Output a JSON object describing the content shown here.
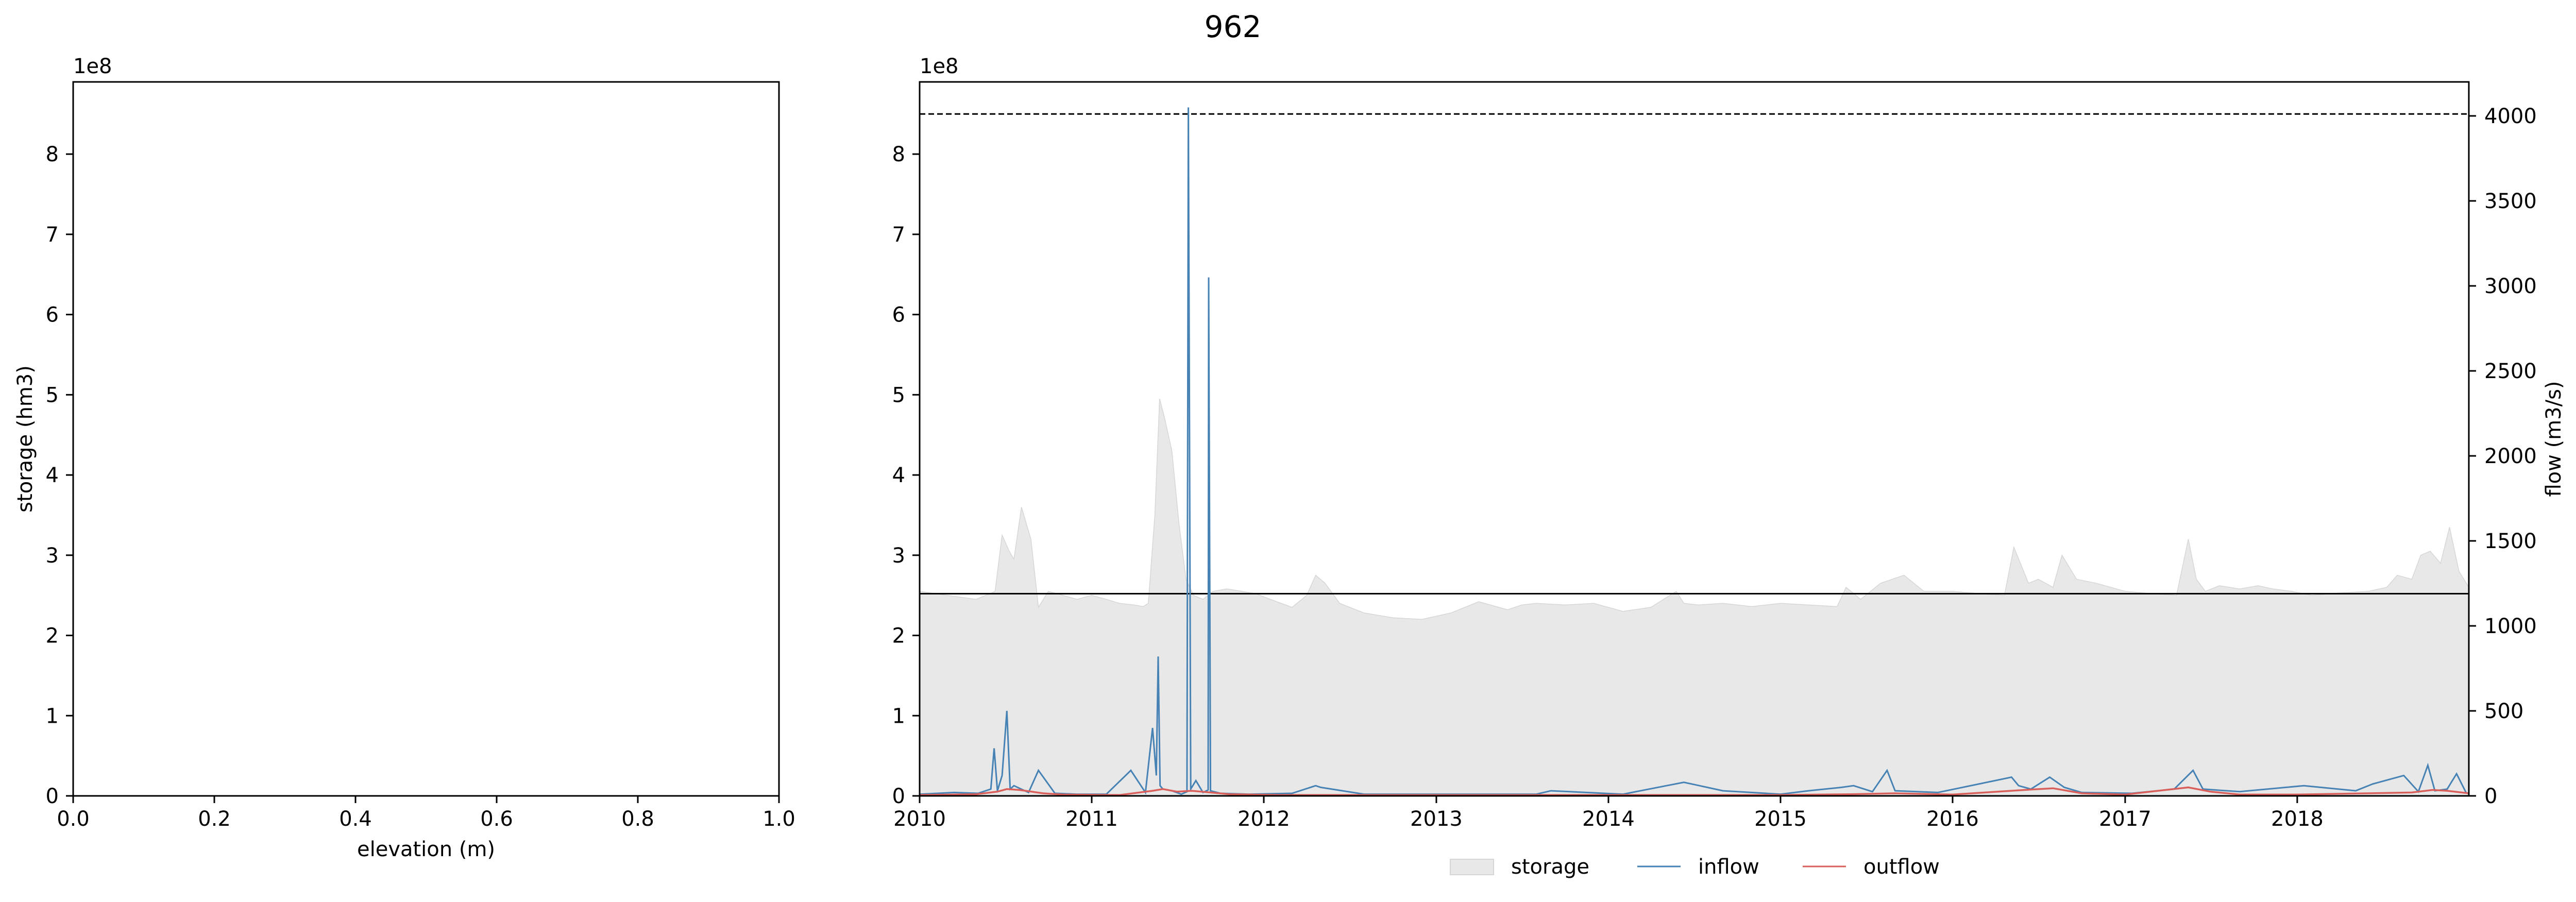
{
  "figure": {
    "title": "962",
    "legend": {
      "placement": "bottom-center",
      "entries": [
        {
          "label": "storage",
          "color": "#e8e8e8",
          "kind": "patch"
        },
        {
          "label": "inflow",
          "color": "#4682b4",
          "kind": "line"
        },
        {
          "label": "outflow",
          "color": "#d9605a",
          "kind": "line"
        }
      ]
    }
  },
  "chart_data": [
    {
      "type": "line",
      "xlabel": "elevation (m)",
      "ylabel": "storage (hm3)",
      "xlim": [
        0.0,
        1.0
      ],
      "ylim": [
        0,
        890000000
      ],
      "y_offset_label": "1e8",
      "xticks": [
        0.0,
        0.2,
        0.4,
        0.6,
        0.8,
        1.0
      ],
      "xtick_labels": [
        "0.0",
        "0.2",
        "0.4",
        "0.6",
        "0.8",
        "1.0"
      ],
      "yticks": [
        0,
        100000000,
        200000000,
        300000000,
        400000000,
        500000000,
        600000000,
        700000000,
        800000000
      ],
      "ytick_labels": [
        "0",
        "1",
        "2",
        "3",
        "4",
        "5",
        "6",
        "7",
        "8"
      ],
      "grid": false,
      "series": []
    },
    {
      "type": "area",
      "xlim": [
        "2010-01-01",
        "2018-12-31"
      ],
      "ylim": [
        0,
        890000000
      ],
      "y_offset_label": "1e8",
      "yticks": [
        0,
        100000000,
        200000000,
        300000000,
        400000000,
        500000000,
        600000000,
        700000000,
        800000000
      ],
      "ytick_labels": [
        "0",
        "1",
        "2",
        "3",
        "4",
        "5",
        "6",
        "7",
        "8"
      ],
      "xticks": [
        "2010-01-01",
        "2011-01-01",
        "2012-01-01",
        "2013-01-01",
        "2014-01-01",
        "2015-01-01",
        "2016-01-01",
        "2017-01-01",
        "2018-01-01"
      ],
      "xtick_labels": [
        "2010",
        "2011",
        "2012",
        "2013",
        "2014",
        "2015",
        "2016",
        "2017",
        "2018"
      ],
      "y2label": "flow (m3/s)",
      "y2lim": [
        0,
        4200
      ],
      "y2ticks": [
        0,
        500,
        1000,
        1500,
        2000,
        2500,
        3000,
        3500,
        4000
      ],
      "y2tick_labels": [
        "0",
        "500",
        "1000",
        "1500",
        "2000",
        "2500",
        "3000",
        "3500",
        "4000"
      ],
      "grid": false,
      "reference_lines": [
        {
          "name": "dashed-max-line",
          "value": 850000000,
          "style": "dashed",
          "color": "#000000"
        },
        {
          "name": "solid-level-line",
          "value": 252000000,
          "style": "solid",
          "color": "#000000"
        }
      ],
      "storage": {
        "color": "#e8e8e8",
        "x": [
          "2010-01-01",
          "2010-03-01",
          "2010-05-01",
          "2010-06-10",
          "2010-06-25",
          "2010-07-10",
          "2010-07-20",
          "2010-08-05",
          "2010-08-25",
          "2010-09-10",
          "2010-10-01",
          "2010-11-01",
          "2010-12-01",
          "2011-01-01",
          "2011-02-01",
          "2011-03-01",
          "2011-04-01",
          "2011-04-20",
          "2011-05-01",
          "2011-05-15",
          "2011-05-25",
          "2011-06-05",
          "2011-06-20",
          "2011-07-05",
          "2011-07-20",
          "2011-08-05",
          "2011-08-25",
          "2011-09-15",
          "2011-10-15",
          "2011-11-15",
          "2011-12-15",
          "2012-01-15",
          "2012-03-01",
          "2012-04-01",
          "2012-04-20",
          "2012-05-10",
          "2012-06-10",
          "2012-08-01",
          "2012-10-01",
          "2012-12-01",
          "2013-02-01",
          "2013-04-01",
          "2013-06-01",
          "2013-07-01",
          "2013-08-01",
          "2013-10-01",
          "2013-12-01",
          "2014-02-01",
          "2014-04-01",
          "2014-05-25",
          "2014-06-10",
          "2014-07-10",
          "2014-09-01",
          "2014-11-01",
          "2015-01-01",
          "2015-03-01",
          "2015-05-01",
          "2015-05-20",
          "2015-06-20",
          "2015-08-01",
          "2015-09-20",
          "2015-11-01",
          "2016-01-01",
          "2016-03-01",
          "2016-04-20",
          "2016-05-10",
          "2016-06-10",
          "2016-07-01",
          "2016-08-01",
          "2016-08-20",
          "2016-09-20",
          "2016-11-01",
          "2017-01-01",
          "2017-03-01",
          "2017-04-20",
          "2017-05-15",
          "2017-06-01",
          "2017-06-20",
          "2017-07-20",
          "2017-09-01",
          "2017-10-10",
          "2017-11-10",
          "2017-12-20",
          "2018-02-01",
          "2018-04-01",
          "2018-06-01",
          "2018-07-10",
          "2018-08-01",
          "2018-09-01",
          "2018-09-20",
          "2018-10-10",
          "2018-11-01",
          "2018-11-20",
          "2018-12-10",
          "2018-12-31"
        ],
        "values": [
          255000000,
          250000000,
          245000000,
          255000000,
          325000000,
          305000000,
          295000000,
          360000000,
          320000000,
          235000000,
          255000000,
          250000000,
          245000000,
          250000000,
          245000000,
          240000000,
          238000000,
          236000000,
          240000000,
          350000000,
          495000000,
          470000000,
          430000000,
          340000000,
          270000000,
          250000000,
          245000000,
          255000000,
          258000000,
          255000000,
          252000000,
          245000000,
          235000000,
          250000000,
          275000000,
          265000000,
          240000000,
          228000000,
          222000000,
          220000000,
          228000000,
          242000000,
          232000000,
          238000000,
          240000000,
          238000000,
          240000000,
          230000000,
          235000000,
          255000000,
          240000000,
          238000000,
          240000000,
          236000000,
          240000000,
          238000000,
          236000000,
          260000000,
          245000000,
          265000000,
          275000000,
          255000000,
          255000000,
          252000000,
          250000000,
          310000000,
          265000000,
          270000000,
          260000000,
          300000000,
          270000000,
          265000000,
          255000000,
          252000000,
          250000000,
          320000000,
          270000000,
          255000000,
          262000000,
          258000000,
          262000000,
          258000000,
          255000000,
          250000000,
          253000000,
          255000000,
          260000000,
          275000000,
          270000000,
          300000000,
          305000000,
          290000000,
          335000000,
          280000000,
          260000000
        ]
      },
      "series": [
        {
          "name": "inflow",
          "color": "#4682b4",
          "axis": "y2",
          "x": [
            "2010-01-01",
            "2010-03-15",
            "2010-05-05",
            "2010-06-01",
            "2010-06-08",
            "2010-06-15",
            "2010-06-25",
            "2010-07-05",
            "2010-07-12",
            "2010-07-20",
            "2010-08-20",
            "2010-09-10",
            "2010-10-15",
            "2010-12-01",
            "2011-02-01",
            "2011-03-25",
            "2011-04-25",
            "2011-05-10",
            "2011-05-18",
            "2011-05-22",
            "2011-05-26",
            "2011-06-01",
            "2011-06-20",
            "2011-07-10",
            "2011-07-22",
            "2011-07-25",
            "2011-07-30",
            "2011-08-10",
            "2011-08-25",
            "2011-09-05",
            "2011-09-06",
            "2011-09-10",
            "2011-10-01",
            "2011-12-01",
            "2012-03-01",
            "2012-04-20",
            "2012-05-01",
            "2012-08-01",
            "2013-06-01",
            "2013-08-01",
            "2013-09-01",
            "2014-02-01",
            "2014-06-10",
            "2014-09-01",
            "2015-01-01",
            "2015-03-01",
            "2015-05-10",
            "2015-06-05",
            "2015-07-15",
            "2015-08-15",
            "2015-09-01",
            "2015-12-01",
            "2016-05-05",
            "2016-05-20",
            "2016-06-15",
            "2016-07-25",
            "2016-08-25",
            "2016-10-01",
            "2017-01-15",
            "2017-04-15",
            "2017-05-25",
            "2017-06-15",
            "2017-09-01",
            "2018-01-15",
            "2018-05-05",
            "2018-06-10",
            "2018-08-15",
            "2018-09-15",
            "2018-10-05",
            "2018-10-20",
            "2018-11-15",
            "2018-12-05",
            "2018-12-25"
          ],
          "values": [
            10,
            20,
            15,
            40,
            280,
            30,
            120,
            500,
            40,
            60,
            20,
            150,
            15,
            10,
            10,
            150,
            20,
            400,
            120,
            820,
            60,
            40,
            30,
            10,
            25,
            4050,
            40,
            90,
            20,
            35,
            3050,
            30,
            15,
            10,
            15,
            60,
            50,
            10,
            10,
            10,
            30,
            10,
            80,
            30,
            10,
            30,
            50,
            60,
            25,
            150,
            30,
            20,
            110,
            60,
            40,
            110,
            50,
            20,
            15,
            40,
            150,
            40,
            25,
            60,
            30,
            70,
            120,
            25,
            180,
            30,
            40,
            130,
            20
          ]
        },
        {
          "name": "outflow",
          "color": "#d9605a",
          "axis": "y2",
          "x": [
            "2010-01-01",
            "2010-05-01",
            "2010-06-15",
            "2010-07-05",
            "2010-08-01",
            "2010-09-20",
            "2010-11-01",
            "2011-03-01",
            "2011-05-10",
            "2011-06-01",
            "2011-07-01",
            "2011-08-01",
            "2011-09-10",
            "2011-10-20",
            "2012-02-01",
            "2012-06-01",
            "2013-01-01",
            "2014-01-01",
            "2015-01-01",
            "2015-06-01",
            "2015-09-01",
            "2016-01-01",
            "2016-06-01",
            "2016-08-01",
            "2016-10-01",
            "2017-01-01",
            "2017-05-15",
            "2017-07-01",
            "2017-09-01",
            "2018-01-01",
            "2018-06-01",
            "2018-09-01",
            "2018-10-15",
            "2018-11-15",
            "2018-12-31"
          ],
          "values": [
            5,
            10,
            25,
            40,
            35,
            15,
            8,
            5,
            30,
            40,
            25,
            30,
            20,
            10,
            5,
            5,
            5,
            5,
            5,
            10,
            15,
            8,
            35,
            45,
            15,
            8,
            50,
            25,
            8,
            8,
            15,
            20,
            35,
            30,
            15
          ]
        }
      ]
    }
  ]
}
